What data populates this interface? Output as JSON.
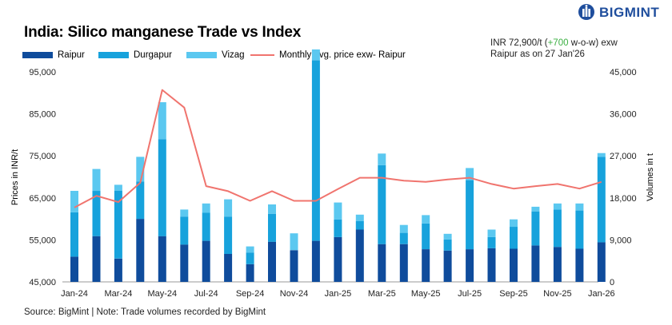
{
  "header": {
    "title": "India: Silico manganese Trade vs Index",
    "brand": "BIGMINT",
    "price_line_prefix": "INR 72,900/t (",
    "price_change": "+700",
    "price_line_suffix": " w-o-w) exw",
    "date_line": "Raipur as on 27 Jan'26"
  },
  "footer": {
    "source": "Source: BigMint | Note: Trade volumes recorded by BigMint"
  },
  "colors": {
    "raipur": "#0f4c9c",
    "durgapur": "#17a2dc",
    "vizag": "#5bc8f0",
    "price": "#f0746e",
    "up": "#3cb043"
  },
  "chart_data": {
    "type": "bar",
    "stacked": true,
    "ylabel": "Prices in INR/t",
    "y2label": "Volumes in t",
    "ylim": [
      45000,
      95000
    ],
    "y2lim": [
      0,
      45000
    ],
    "yticks": [
      "45,000",
      "55,000",
      "65,000",
      "75,000",
      "85,000",
      "95,000"
    ],
    "y2ticks": [
      "0",
      "9,000",
      "18,000",
      "27,000",
      "36,000",
      "45,000"
    ],
    "x_tick_labels": [
      "Jan-24",
      "Mar-24",
      "May-24",
      "Jul-24",
      "Sep-24",
      "Nov-24",
      "Jan-25",
      "Mar-25",
      "May-25",
      "Jul-25",
      "Sep-25",
      "Nov-25",
      "Jan-26"
    ],
    "grid": false,
    "legend_position": "top",
    "series": [
      {
        "name": "Raipur",
        "axis": "secondary",
        "values": [
          5400,
          9800,
          5000,
          13500,
          9800,
          8000,
          8800,
          6000,
          3800,
          8600,
          6800,
          8800,
          9600,
          11200,
          8100,
          8100,
          7000,
          6700,
          7000,
          7200,
          7100,
          7800,
          7500,
          7100,
          8500
        ]
      },
      {
        "name": "Durgapur",
        "axis": "secondary",
        "values": [
          9500,
          9700,
          14500,
          8000,
          20800,
          6000,
          6000,
          8000,
          2500,
          6000,
          0,
          38700,
          3800,
          1800,
          16900,
          2400,
          5500,
          2400,
          14800,
          2400,
          4700,
          7300,
          8000,
          8200,
          18300
        ]
      },
      {
        "name": "Vizag",
        "axis": "secondary",
        "values": [
          4600,
          4700,
          1300,
          5300,
          7900,
          1500,
          2000,
          3700,
          1300,
          2000,
          3600,
          2300,
          3600,
          1400,
          2500,
          1700,
          1800,
          1200,
          2600,
          1600,
          1600,
          1000,
          1300,
          1500,
          800
        ]
      },
      {
        "name": "Monthly avg. price exw- Raipur",
        "type": "line",
        "axis": "primary",
        "values": [
          62700,
          65500,
          64000,
          68600,
          90700,
          86500,
          67800,
          66600,
          64300,
          66600,
          64300,
          64300,
          67100,
          69800,
          69800,
          69100,
          68800,
          69400,
          69800,
          68300,
          67200,
          67800,
          68300,
          67200,
          68800
        ]
      }
    ]
  }
}
